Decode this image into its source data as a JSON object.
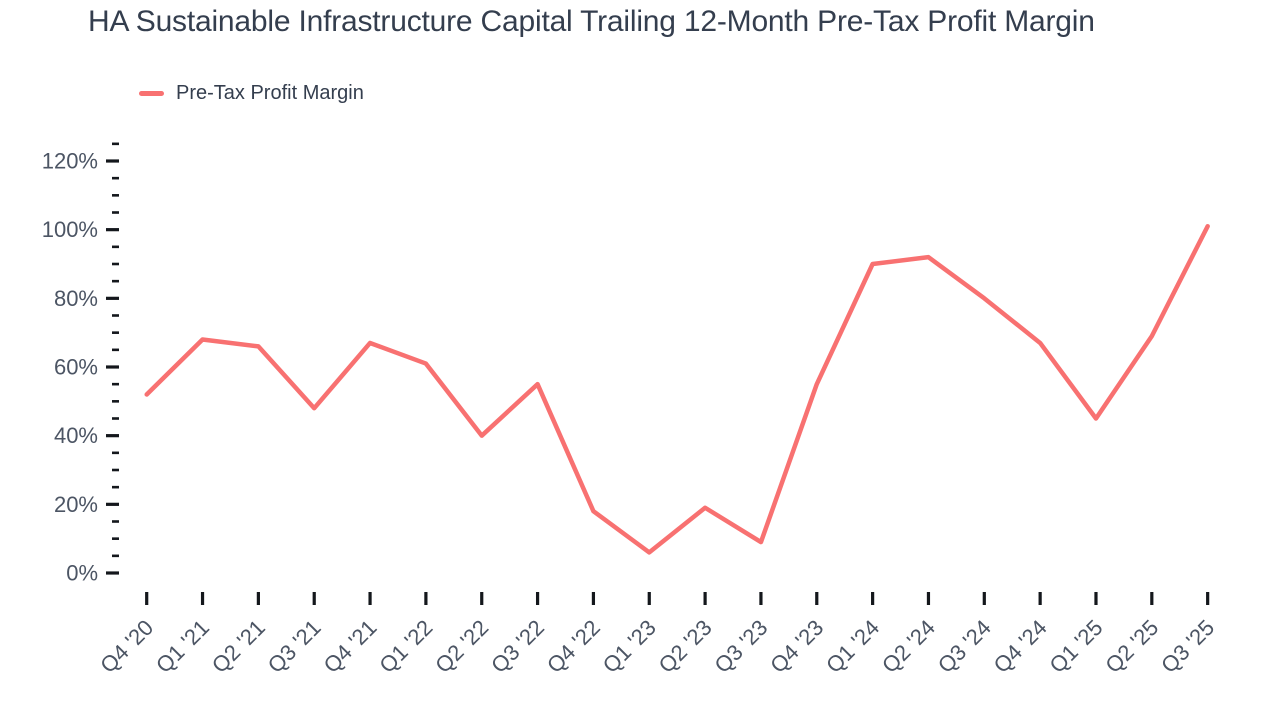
{
  "chart_data": {
    "type": "line",
    "title": "HA Sustainable Infrastructure Capital Trailing 12-Month Pre-Tax Profit Margin",
    "xlabel": "",
    "ylabel": "",
    "unit": "%",
    "grid": false,
    "legend_position": "top-left",
    "categories": [
      "Q4 '20",
      "Q1 '21",
      "Q2 '21",
      "Q3 '21",
      "Q4 '21",
      "Q1 '22",
      "Q2 '22",
      "Q3 '22",
      "Q4 '22",
      "Q1 '23",
      "Q2 '23",
      "Q3 '23",
      "Q4 '23",
      "Q1 '24",
      "Q2 '24",
      "Q3 '24",
      "Q4 '24",
      "Q1 '25",
      "Q2 '25",
      "Q3 '25"
    ],
    "series": [
      {
        "name": "Pre-Tax Profit Margin",
        "values": [
          52,
          68,
          66,
          48,
          67,
          61,
          40,
          55,
          18,
          6,
          19,
          9,
          55,
          90,
          92,
          80,
          67,
          45,
          69,
          101
        ]
      }
    ],
    "ylim": [
      0,
      125
    ],
    "y_major_ticks": [
      0,
      20,
      40,
      60,
      80,
      100,
      120
    ],
    "y_tick_labels": [
      "0%",
      "20%",
      "40%",
      "60%",
      "80%",
      "100%",
      "120%"
    ],
    "y_minor_tick_step": 5,
    "colors": {
      "line": "#f87171",
      "title_text": "#343e4e",
      "axis_label_text": "#4c5564",
      "tick_mark": "#14171c"
    }
  }
}
